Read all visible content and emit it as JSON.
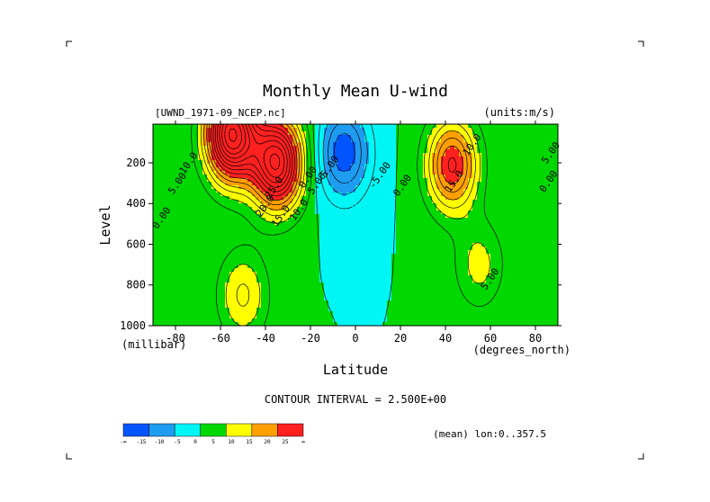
{
  "chart_data": {
    "type": "heatmap",
    "title": "Monthly Mean U-wind",
    "dataset_label": "[UWND_1971-09_NCEP.nc]",
    "units_label": "(units:m/s)",
    "xlabel": "Latitude",
    "x_units": "(degrees_north)",
    "ylabel": "Level",
    "y_units": "(millibar)",
    "xlim": [
      -90,
      90
    ],
    "ylim": [
      1000,
      10
    ],
    "x_ticks": [
      -80,
      -60,
      -40,
      -20,
      0,
      20,
      40,
      60,
      80
    ],
    "y_ticks": [
      200,
      400,
      600,
      800,
      1000
    ],
    "contour_interval_text": "CONTOUR INTERVAL = 2.500E+00",
    "contour_interval": 2.5,
    "footer_note": "(mean) lon:0..357.5",
    "colorbar": {
      "levels": [
        -15,
        -10,
        -5,
        0,
        5,
        10,
        15,
        20,
        25
      ],
      "tick_labels": [
        "-∞",
        "-15",
        "-10",
        "-5",
        "0",
        "5",
        "10",
        "15",
        "20",
        "25",
        "∞"
      ],
      "colors": [
        "#0055ff",
        "#1e9cf0",
        "#00f5f5",
        "#00d800",
        "#ffff00",
        "#ffa000",
        "#ff2020"
      ]
    },
    "wind_features": [
      {
        "lat": -35,
        "p": 200,
        "speed": 30
      },
      {
        "lat": -55,
        "p": 60,
        "speed": 35
      },
      {
        "lat": 43,
        "p": 210,
        "speed": 18
      },
      {
        "lat": -5,
        "p": 150,
        "speed": -12
      },
      {
        "lat": -50,
        "p": 850,
        "speed": 8
      },
      {
        "lat": 55,
        "p": 700,
        "speed": 6
      }
    ],
    "contour_labels": [
      {
        "text": "10.0",
        "lat": -73,
        "p": 210
      },
      {
        "text": "5.00",
        "lat": -78,
        "p": 310
      },
      {
        "text": "0.00",
        "lat": -85,
        "p": 480
      },
      {
        "text": "25.0",
        "lat": -35,
        "p": 330
      },
      {
        "text": "20.0",
        "lat": -39,
        "p": 420
      },
      {
        "text": "15.0",
        "lat": -32,
        "p": 470
      },
      {
        "text": "10.0",
        "lat": -24,
        "p": 440
      },
      {
        "text": "5.00",
        "lat": -16,
        "p": 310
      },
      {
        "text": "0.00",
        "lat": -20,
        "p": 280
      },
      {
        "text": "-5.00",
        "lat": -11,
        "p": 240
      },
      {
        "text": "-5.00",
        "lat": 12,
        "p": 270
      },
      {
        "text": "0.00",
        "lat": 22,
        "p": 320
      },
      {
        "text": "10.0",
        "lat": 53,
        "p": 120
      },
      {
        "text": "15.0",
        "lat": 45,
        "p": 300
      },
      {
        "text": "5.00",
        "lat": 88,
        "p": 160
      },
      {
        "text": "0.00",
        "lat": 87,
        "p": 300
      },
      {
        "text": "5.00",
        "lat": 61,
        "p": 780
      }
    ]
  }
}
